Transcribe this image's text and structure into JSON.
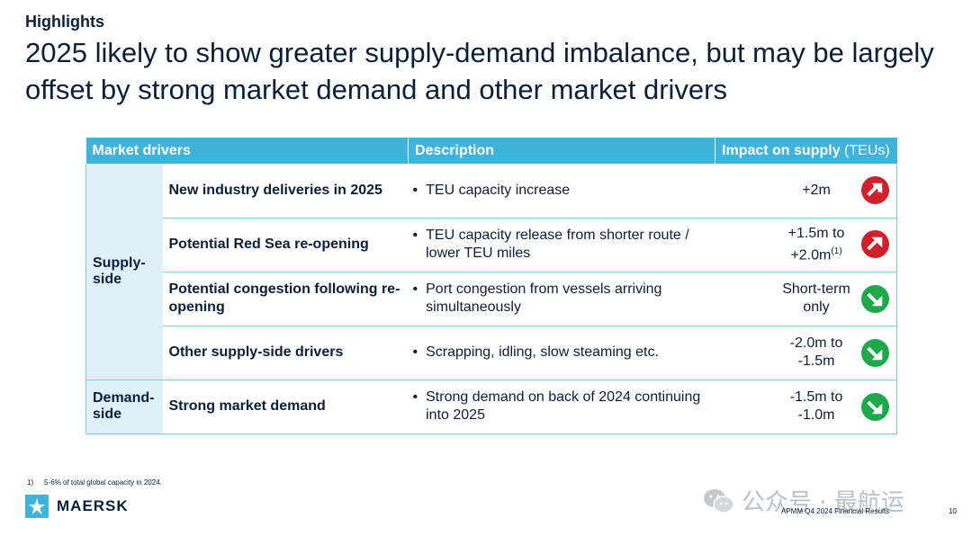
{
  "header": {
    "kicker": "Highlights",
    "title": "2025 likely to show greater supply-demand imbalance, but may be largely offset by strong market demand and other market drivers"
  },
  "table": {
    "headers": {
      "drivers": "Market drivers",
      "description": "Description",
      "impact": "Impact on supply",
      "impact_unit": "(TEUs)"
    },
    "groups": {
      "supply": "Supply-side",
      "demand": "Demand-side"
    },
    "rows": [
      {
        "driver": "New industry deliveries in 2025",
        "description": "TEU capacity increase",
        "impact": "+2m",
        "impact_sup": "",
        "direction": "up",
        "icon": "arrow-up-right-icon"
      },
      {
        "driver": "Potential Red Sea re-opening",
        "description": "TEU capacity release from shorter route / lower TEU miles",
        "impact": "+1.5m to +2.0m",
        "impact_sup": "(1)",
        "direction": "up",
        "icon": "arrow-up-right-icon"
      },
      {
        "driver": "Potential congestion following re-opening",
        "description": "Port congestion from vessels arriving simultaneously",
        "impact": "Short-term only",
        "impact_sup": "",
        "direction": "down",
        "icon": "arrow-down-right-icon"
      },
      {
        "driver": "Other supply-side drivers",
        "description": "Scrapping, idling, slow steaming etc.",
        "impact": "-2.0m to -1.5m",
        "impact_sup": "",
        "direction": "down",
        "icon": "arrow-down-right-icon"
      },
      {
        "driver": "Strong market demand",
        "description": "Strong demand on back of 2024 continuing into 2025",
        "impact": "-1.5m to -1.0m",
        "impact_sup": "",
        "direction": "down",
        "icon": "arrow-down-right-icon"
      }
    ],
    "colors": {
      "header_bg": "#3fb3d9",
      "group_bg": "#dff1f8",
      "up": "#d0202c",
      "down": "#1fa84a"
    }
  },
  "footnote": {
    "marker": "1)",
    "text": "5-6% of total global capacity in 2024."
  },
  "footer": {
    "brand": "MAERSK",
    "logo_icon": "maersk-star-icon",
    "watermark": "公众号 · 最航运",
    "watermark_icon": "wechat-icon",
    "doc_title": "APMM Q4 2024 Financial Results",
    "page_number": "10"
  }
}
